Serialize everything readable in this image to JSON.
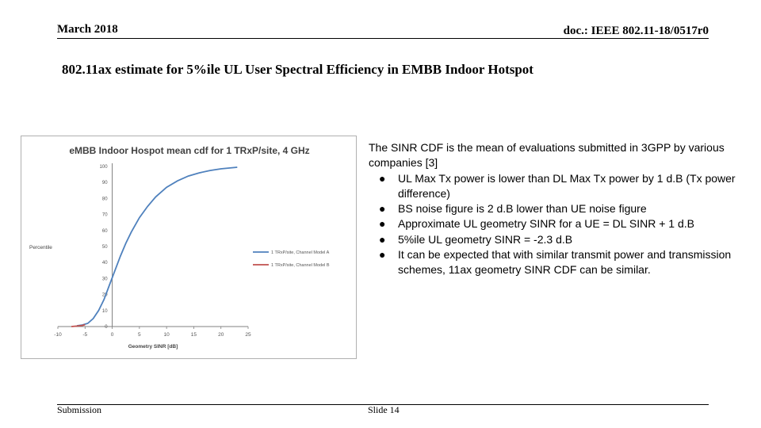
{
  "header": {
    "date": "March 2018",
    "doc_id": "doc.: IEEE 802.11-18/0517r0"
  },
  "title": "802.11ax estimate for 5%ile UL User Spectral Efficiency in EMBB Indoor Hotspot",
  "chart_data": {
    "type": "line",
    "title": "eMBB Indoor Hospot mean cdf for 1 TRxP/site, 4 GHz",
    "xlabel": "Geometry SINR [dB]",
    "ylabel": "Percentile",
    "xlim": [
      -10,
      25
    ],
    "ylim": [
      0,
      100
    ],
    "x_ticks": [
      "-10",
      "-5",
      "0",
      "5",
      "10",
      "15",
      "20",
      "25"
    ],
    "y_ticks": [
      "0",
      "10",
      "20",
      "30",
      "40",
      "50",
      "60",
      "70",
      "80",
      "90",
      "100"
    ],
    "legend_position": "right",
    "colors": {
      "model_a": "#4f81bd",
      "model_b": "#c0504d"
    },
    "series": [
      {
        "name": "1 TRxP/site, Channel Model A",
        "x": [
          -6.5,
          -5.5,
          -4.5,
          -3.5,
          -2.5,
          -1.5,
          -0.5,
          0.5,
          1.5,
          2.5,
          3.5,
          5,
          6.5,
          8,
          10,
          12,
          14,
          16,
          18,
          20,
          23
        ],
        "y": [
          0.5,
          1,
          2,
          5,
          10,
          17,
          26,
          35,
          44,
          52,
          59,
          68,
          75,
          81,
          87,
          91,
          94,
          96,
          97.5,
          98.5,
          99.5
        ]
      },
      {
        "name": "1 TRxP/site, Channel Model B",
        "x": [
          -7.5,
          -6.5,
          -5.5,
          -5
        ],
        "y": [
          0,
          0.3,
          0.7,
          1.2
        ]
      }
    ]
  },
  "body": {
    "intro": "The SINR CDF is the mean of evaluations submitted in 3GPP by various companies  [3]",
    "bullet_glyph": "●",
    "bullets": [
      "UL Max Tx power is lower than DL Max Tx power by 1 d.B (Tx power difference)",
      "BS noise figure is 2 d.B lower than UE noise figure",
      "Approximate UL geometry SINR for a UE = DL SINR + 1 d.B",
      "5%ile UL geometry SINR = -2.3 d.B",
      "It can be expected  that with similar transmit power and transmission schemes, 11ax geometry SINR CDF can be similar."
    ]
  },
  "footer": {
    "left": "Submission",
    "slide": "Slide 14"
  }
}
